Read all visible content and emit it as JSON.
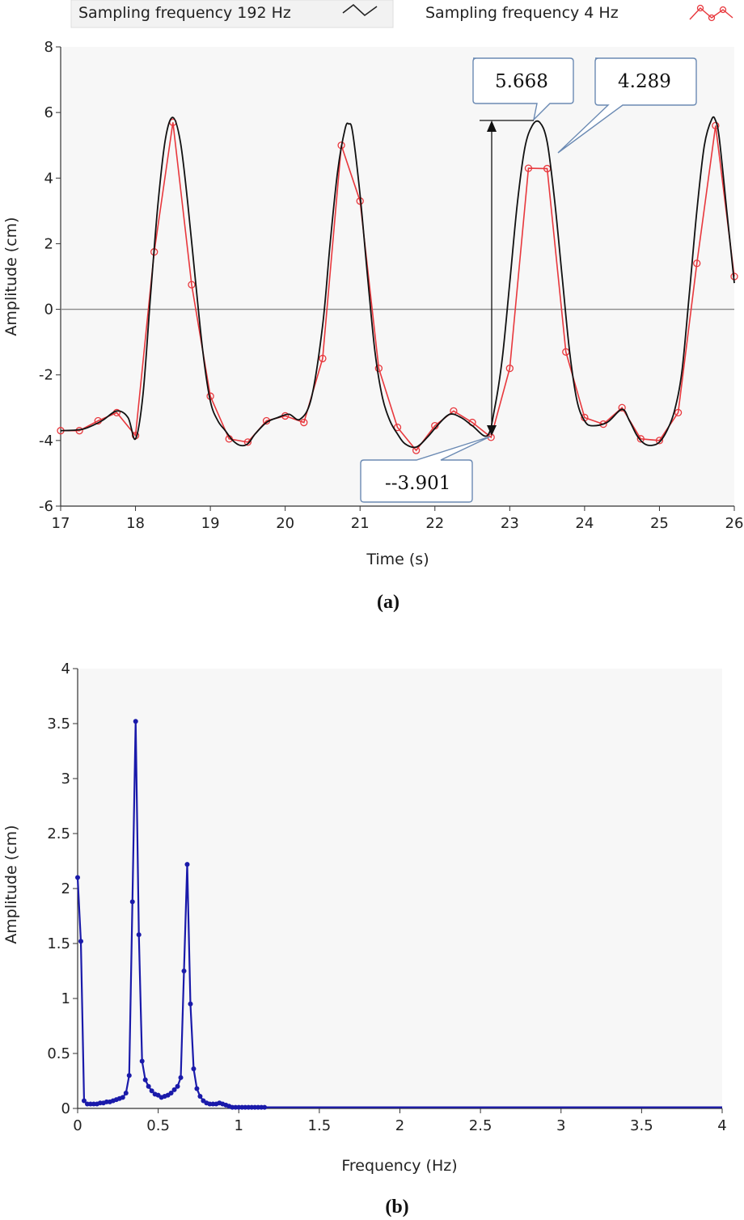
{
  "colors": {
    "plot_bg": "#f7f7f7",
    "series_192": "#111111",
    "series_4": "#e8383d",
    "spectrum": "#1a1aaa",
    "callout_border": "#6b8ab3"
  },
  "chart_data": [
    {
      "type": "line",
      "caption": "(a)",
      "xlabel": "Time (s)",
      "ylabel": "Amplitude (cm)",
      "xlim": [
        17,
        26
      ],
      "ylim": [
        -6,
        8
      ],
      "xticks": [
        "17",
        "18",
        "19",
        "20",
        "21",
        "22",
        "23",
        "24",
        "25",
        "26"
      ],
      "yticks": [
        "8",
        "6",
        "4",
        "2",
        "0",
        "-2",
        "-4",
        "-6"
      ],
      "legend": {
        "placement": "top",
        "entries": [
          "Sampling frequency 192 Hz",
          "Sampling frequency 4 Hz"
        ]
      },
      "grid": false,
      "series": [
        {
          "name": "Sampling frequency 192 Hz",
          "x": [
            17.0,
            17.3,
            17.55,
            17.75,
            17.9,
            18.0,
            18.1,
            18.2,
            18.3,
            18.4,
            18.5,
            18.6,
            18.7,
            18.8,
            18.9,
            19.0,
            19.1,
            19.2,
            19.3,
            19.4,
            19.5,
            19.6,
            19.75,
            19.9,
            20.05,
            20.2,
            20.35,
            20.5,
            20.6,
            20.7,
            20.8,
            20.85,
            20.9,
            21.0,
            21.1,
            21.2,
            21.3,
            21.4,
            21.5,
            21.6,
            21.75,
            21.9,
            22.05,
            22.2,
            22.35,
            22.5,
            22.7,
            22.8,
            22.9,
            23.0,
            23.1,
            23.2,
            23.3,
            23.4,
            23.5,
            23.6,
            23.7,
            23.8,
            23.9,
            24.0,
            24.1,
            24.3,
            24.5,
            24.6,
            24.7,
            24.8,
            24.9,
            25.0,
            25.1,
            25.2,
            25.3,
            25.4,
            25.5,
            25.6,
            25.7,
            25.75,
            25.8,
            25.9,
            26.0
          ],
          "values": [
            -3.7,
            -3.65,
            -3.4,
            -3.1,
            -3.3,
            -3.95,
            -2.6,
            0.4,
            3.2,
            5.2,
            5.85,
            5.1,
            3.2,
            0.9,
            -1.3,
            -2.8,
            -3.4,
            -3.7,
            -4.0,
            -4.15,
            -4.1,
            -3.8,
            -3.45,
            -3.3,
            -3.2,
            -3.35,
            -2.7,
            -0.5,
            2.0,
            4.2,
            5.5,
            5.65,
            5.4,
            3.5,
            1.0,
            -1.3,
            -2.7,
            -3.4,
            -3.8,
            -4.1,
            -4.2,
            -3.9,
            -3.5,
            -3.2,
            -3.3,
            -3.55,
            -3.85,
            -3.0,
            -1.5,
            0.8,
            3.2,
            4.9,
            5.6,
            5.7,
            5.1,
            3.3,
            1.0,
            -1.3,
            -2.8,
            -3.4,
            -3.55,
            -3.45,
            -3.05,
            -3.4,
            -3.85,
            -4.1,
            -4.15,
            -4.05,
            -3.7,
            -3.1,
            -1.9,
            0.5,
            3.0,
            5.0,
            5.8,
            5.75,
            5.2,
            3.0,
            0.8
          ]
        },
        {
          "name": "Sampling frequency 4 Hz",
          "x": [
            17.0,
            17.25,
            17.5,
            17.75,
            18.0,
            18.25,
            18.5,
            18.75,
            19.0,
            19.25,
            19.5,
            19.75,
            20.0,
            20.25,
            20.5,
            20.75,
            21.0,
            21.25,
            21.5,
            21.75,
            22.0,
            22.25,
            22.5,
            22.75,
            23.0,
            23.25,
            23.5,
            23.75,
            24.0,
            24.25,
            24.5,
            24.75,
            25.0,
            25.25,
            25.5,
            25.75,
            26.0
          ],
          "values": [
            -3.7,
            -3.7,
            -3.4,
            -3.15,
            -3.85,
            1.75,
            5.7,
            0.75,
            -2.65,
            -3.95,
            -4.05,
            -3.4,
            -3.25,
            -3.45,
            -1.5,
            5.0,
            3.3,
            -1.8,
            -3.6,
            -4.3,
            -3.55,
            -3.1,
            -3.45,
            -3.901,
            -1.8,
            4.3,
            4.289,
            -1.3,
            -3.3,
            -3.5,
            -3.0,
            -3.95,
            -4.0,
            -3.15,
            1.4,
            5.6,
            1.0
          ]
        }
      ],
      "annotations": [
        {
          "text": "5.668",
          "x": 23.4,
          "y": 5.668
        },
        {
          "text": "4.289",
          "x": 23.5,
          "y": 4.289
        },
        {
          "text": "--3.901",
          "x": 22.75,
          "y": -3.901
        }
      ]
    },
    {
      "type": "line",
      "caption": "(b)",
      "xlabel": "Frequency (Hz)",
      "ylabel": "Amplitude (cm)",
      "xlim": [
        0,
        4
      ],
      "ylim": [
        0,
        4
      ],
      "xticks": [
        "0",
        "0.5",
        "1",
        "1.5",
        "2",
        "2.5",
        "3",
        "3.5",
        "4"
      ],
      "yticks": [
        "4",
        "3.5",
        "3",
        "2.5",
        "2",
        "1.5",
        "1",
        "0.5",
        "0"
      ],
      "grid": false,
      "series": [
        {
          "x": [
            0.0,
            0.02,
            0.04,
            0.06,
            0.08,
            0.1,
            0.12,
            0.14,
            0.16,
            0.18,
            0.2,
            0.22,
            0.24,
            0.26,
            0.28,
            0.3,
            0.32,
            0.34,
            0.36,
            0.38,
            0.4,
            0.42,
            0.44,
            0.46,
            0.48,
            0.5,
            0.52,
            0.54,
            0.56,
            0.58,
            0.6,
            0.62,
            0.64,
            0.66,
            0.68,
            0.7,
            0.72,
            0.74,
            0.76,
            0.78,
            0.8,
            0.82,
            0.84,
            0.86,
            0.88,
            0.9,
            0.92,
            0.94,
            0.96,
            0.98,
            1.0,
            1.02,
            1.04,
            1.06,
            1.08,
            1.1,
            1.12,
            1.14,
            1.16,
            1.2,
            1.3,
            1.5,
            2.0,
            2.5,
            3.0,
            3.5,
            4.0
          ],
          "values": [
            2.1,
            1.52,
            0.07,
            0.04,
            0.04,
            0.04,
            0.04,
            0.05,
            0.05,
            0.06,
            0.06,
            0.07,
            0.08,
            0.09,
            0.1,
            0.14,
            0.3,
            1.88,
            3.52,
            1.58,
            0.43,
            0.26,
            0.2,
            0.16,
            0.13,
            0.12,
            0.1,
            0.11,
            0.12,
            0.14,
            0.17,
            0.2,
            0.28,
            1.25,
            2.22,
            0.95,
            0.36,
            0.18,
            0.11,
            0.07,
            0.05,
            0.04,
            0.04,
            0.04,
            0.05,
            0.04,
            0.03,
            0.02,
            0.01,
            0.01,
            0.01,
            0.01,
            0.01,
            0.01,
            0.01,
            0.01,
            0.01,
            0.01,
            0.01,
            0.01,
            0.01,
            0.01,
            0.01,
            0.01,
            0.01,
            0.01,
            0.01
          ]
        }
      ]
    }
  ]
}
